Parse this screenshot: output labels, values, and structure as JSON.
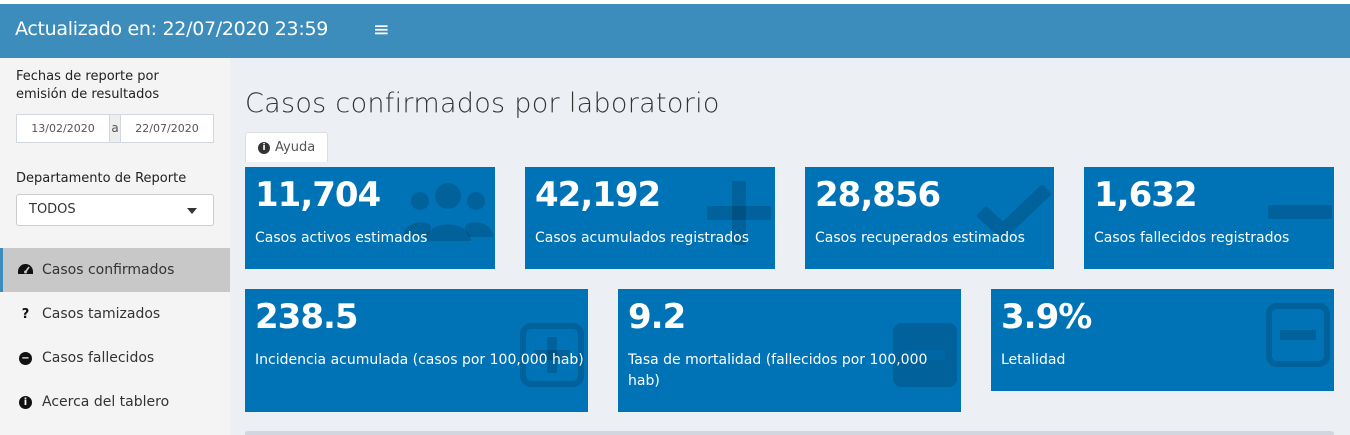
{
  "header": {
    "title": "Actualizado en: 22/07/2020 23:59",
    "menu_icon": "hamburger-icon"
  },
  "sidebar": {
    "date_label": "Fechas de reporte por emisión de resultados",
    "date_start": "13/02/2020",
    "date_separator": "a",
    "date_end": "22/07/2020",
    "department_label": "Departamento de Reporte",
    "department_selected": "TODOS",
    "menu": [
      {
        "label": "Casos confirmados",
        "icon": "dashboard-icon",
        "active": true
      },
      {
        "label": "Casos tamizados",
        "icon": "question-icon",
        "active": false
      },
      {
        "label": "Casos fallecidos",
        "icon": "minus-circle-icon",
        "active": false
      },
      {
        "label": "Acerca del tablero",
        "icon": "info-circle-icon",
        "active": false
      }
    ]
  },
  "main": {
    "title": "Casos confirmados por laboratorio",
    "help_tab": "Ayuda",
    "row1": [
      {
        "value": "11,704",
        "label": "Casos activos estimados",
        "icon": "users-icon"
      },
      {
        "value": "42,192",
        "label": "Casos acumulados registrados",
        "icon": "plus-icon"
      },
      {
        "value": "28,856",
        "label": "Casos recuperados estimados",
        "icon": "check-icon"
      },
      {
        "value": "1,632",
        "label": "Casos fallecidos registrados",
        "icon": "minus-icon"
      }
    ],
    "row2": [
      {
        "value": "238.5",
        "label": "Incidencia acumulada (casos por 100,000 hab)",
        "icon": "plus-square-icon"
      },
      {
        "value": "9.2",
        "label": "Tasa de mortalidad (fallecidos por 100,000 hab)",
        "icon": "minus-square-icon"
      },
      {
        "value": "3.9%",
        "label": "Letalidad",
        "icon": "minus-square-outline-icon"
      }
    ]
  },
  "colors": {
    "header": "#3c8dbc",
    "value_box": "#0073b7",
    "background": "#ecf0f5",
    "sidebar": "#f4f4f4"
  }
}
